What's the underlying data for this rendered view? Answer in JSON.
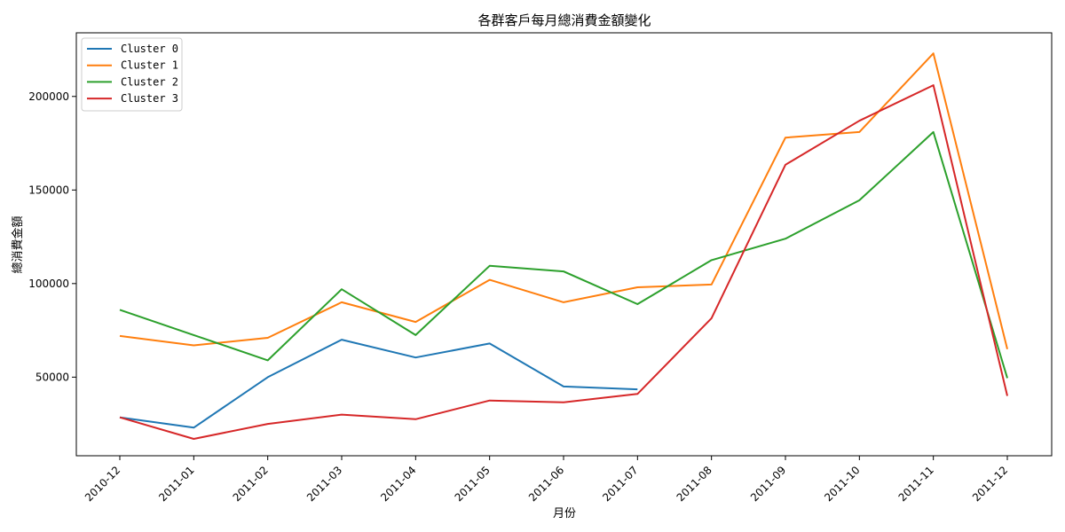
{
  "chart_data": {
    "type": "line",
    "title": "各群客戶每月總消費金額變化",
    "xlabel": "月份",
    "ylabel": "總消費金額",
    "categories": [
      "2010-12",
      "2011-01",
      "2011-02",
      "2011-03",
      "2011-04",
      "2011-05",
      "2011-06",
      "2011-07",
      "2011-08",
      "2011-09",
      "2011-10",
      "2011-11",
      "2011-12"
    ],
    "ylim": [
      8000,
      234000
    ],
    "yticks": [
      50000,
      100000,
      150000,
      200000
    ],
    "grid": false,
    "legend_position": "top-left",
    "series": [
      {
        "name": "Cluster 0",
        "color": "#1f77b4",
        "values": [
          28500,
          23000,
          50000,
          70000,
          60500,
          68000,
          45000,
          43500,
          null,
          null,
          null,
          null,
          null
        ]
      },
      {
        "name": "Cluster 1",
        "color": "#ff7f0e",
        "values": [
          72000,
          67000,
          71000,
          90000,
          79500,
          102000,
          90000,
          98000,
          99500,
          178000,
          181000,
          223000,
          65000
        ]
      },
      {
        "name": "Cluster 2",
        "color": "#2ca02c",
        "values": [
          86000,
          72500,
          59000,
          97000,
          72500,
          109500,
          106500,
          89000,
          112500,
          124000,
          144500,
          181000,
          49500
        ]
      },
      {
        "name": "Cluster 3",
        "color": "#d62728",
        "values": [
          28500,
          17000,
          25000,
          30000,
          27500,
          37500,
          36500,
          41000,
          81500,
          163500,
          187000,
          206000,
          40000
        ]
      }
    ]
  }
}
